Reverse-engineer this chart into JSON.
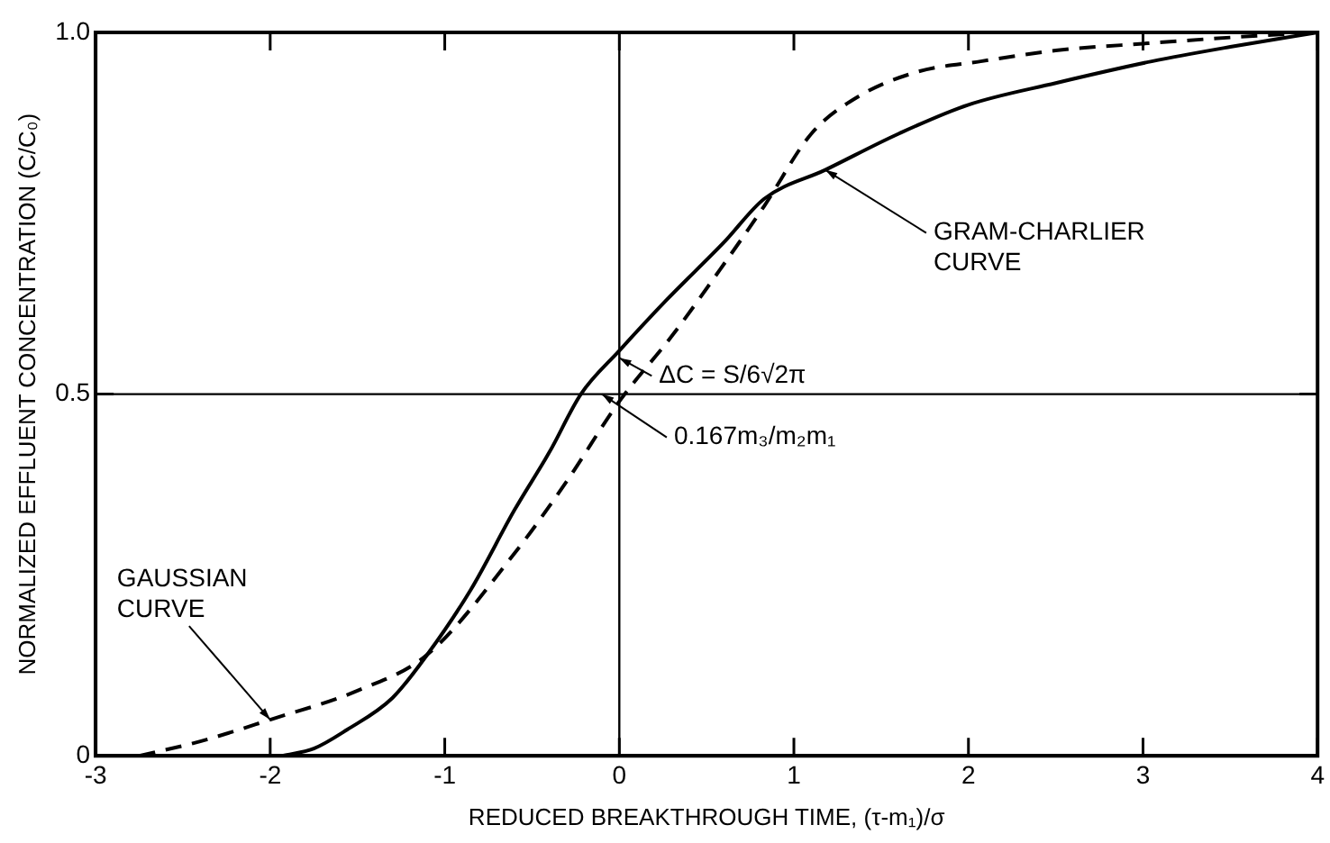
{
  "chart_data": {
    "type": "line",
    "xlabel": "REDUCED BREAKTHROUGH TIME, (τ-m₁)/σ",
    "ylabel": "NORMALIZED EFFLUENT CONCENTRATION (C/C₀)",
    "xlim": [
      -3,
      4
    ],
    "ylim": [
      0,
      1
    ],
    "xticks": [
      -3,
      -2,
      -1,
      0,
      1,
      2,
      3,
      4
    ],
    "yticks": [
      0,
      0.5,
      {
        "value": 1,
        "label": "1.0"
      }
    ],
    "grid": false,
    "legend": false,
    "marker": "none",
    "series": [
      {
        "color": "#000000",
        "line_style": "dashed",
        "x": [
          -2.75,
          -2.4,
          -2,
          -1.5,
          -1.1,
          -0.6,
          -0.3,
          0,
          0.3,
          0.6,
          0.83,
          1.1,
          1.36,
          1.7,
          2.07,
          2.5,
          3.03,
          3.5,
          4
        ],
        "values": [
          0,
          0.02,
          0.05,
          0.09,
          0.14,
          0.28,
          0.38,
          0.49,
          0.58,
          0.68,
          0.76,
          0.86,
          0.91,
          0.945,
          0.96,
          0.975,
          0.985,
          0.993,
          1
        ]
      },
      {
        "color": "#000000",
        "line_style": "solid",
        "x": [
          -1.93,
          -1.75,
          -1.56,
          -1.3,
          -1.1,
          -0.85,
          -0.6,
          -0.4,
          -0.22,
          0,
          0.27,
          0.6,
          0.83,
          1.18,
          1.6,
          2,
          2.5,
          3.05,
          3.5,
          4
        ],
        "values": [
          0,
          0.01,
          0.036,
          0.08,
          0.14,
          0.23,
          0.34,
          0.42,
          0.5,
          0.56,
          0.63,
          0.71,
          0.77,
          0.81,
          0.86,
          0.9,
          0.93,
          0.96,
          0.98,
          1
        ]
      }
    ],
    "ref_lines": [
      {
        "axis": "x",
        "value": 0,
        "color": "#000000"
      },
      {
        "axis": "y",
        "value": 0.5,
        "color": "#000000"
      }
    ],
    "annotations": [
      {
        "text": "GAUSSIAN\nCURVE",
        "x": -2,
        "y": 0.05
      },
      {
        "text": "GRAM-CHARLIER\nCURVE",
        "x": 1.18,
        "y": 0.81
      },
      {
        "text": "ΔC = S/6√2π",
        "x": 0,
        "y": 0.55
      },
      {
        "text": "0.167m₃/m₂m₁",
        "x": -0.1,
        "y": 0.5
      }
    ]
  }
}
